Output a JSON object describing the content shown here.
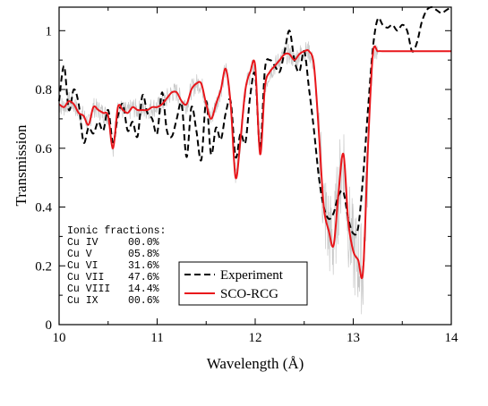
{
  "chart_data": {
    "type": "line",
    "title": "",
    "xlabel": "Wavelength (Å)",
    "ylabel": "Transmission",
    "xlim": [
      10,
      14
    ],
    "ylim": [
      0,
      1.08
    ],
    "xticks": [
      10,
      11,
      12,
      13,
      14
    ],
    "yticks": [
      0,
      0.2,
      0.4,
      0.6,
      0.8,
      1
    ],
    "grid": false,
    "legend_position": "bottom-center",
    "series": [
      {
        "name": "Experiment",
        "style": "dashed",
        "color": "#000000",
        "x": [
          10.0,
          10.05,
          10.1,
          10.15,
          10.2,
          10.25,
          10.3,
          10.35,
          10.4,
          10.45,
          10.5,
          10.55,
          10.6,
          10.65,
          10.7,
          10.75,
          10.8,
          10.85,
          10.9,
          10.95,
          11.0,
          11.05,
          11.1,
          11.15,
          11.2,
          11.25,
          11.3,
          11.35,
          11.4,
          11.45,
          11.5,
          11.55,
          11.6,
          11.65,
          11.7,
          11.75,
          11.8,
          11.85,
          11.9,
          11.95,
          12.0,
          12.05,
          12.1,
          12.15,
          12.2,
          12.25,
          12.3,
          12.35,
          12.4,
          12.45,
          12.5,
          12.55,
          12.6,
          12.65,
          12.7,
          12.75,
          12.8,
          12.85,
          12.9,
          12.95,
          13.0,
          13.05,
          13.1,
          13.15,
          13.2,
          13.25,
          13.3,
          13.35,
          13.4,
          13.45,
          13.5,
          13.55,
          13.6,
          13.65,
          13.7,
          13.75,
          13.8,
          13.85,
          13.9,
          13.95,
          14.0
        ],
        "y": [
          0.76,
          0.88,
          0.73,
          0.8,
          0.75,
          0.62,
          0.67,
          0.65,
          0.69,
          0.66,
          0.73,
          0.62,
          0.71,
          0.75,
          0.66,
          0.69,
          0.64,
          0.78,
          0.72,
          0.7,
          0.65,
          0.79,
          0.66,
          0.64,
          0.7,
          0.75,
          0.57,
          0.74,
          0.66,
          0.56,
          0.76,
          0.58,
          0.67,
          0.63,
          0.72,
          0.76,
          0.57,
          0.65,
          0.62,
          0.78,
          0.85,
          0.6,
          0.87,
          0.9,
          0.88,
          0.86,
          0.93,
          1.0,
          0.9,
          0.86,
          0.93,
          0.8,
          0.66,
          0.5,
          0.4,
          0.36,
          0.38,
          0.44,
          0.45,
          0.36,
          0.31,
          0.33,
          0.5,
          0.73,
          0.94,
          1.04,
          1.02,
          1.01,
          1.02,
          1.0,
          1.02,
          1.0,
          0.93,
          0.96,
          1.03,
          1.07,
          1.08,
          1.07,
          1.06,
          1.07,
          1.08
        ]
      },
      {
        "name": "SCO-RCG",
        "style": "solid",
        "color": "#e8161b",
        "x": [
          10.0,
          10.05,
          10.1,
          10.15,
          10.2,
          10.25,
          10.3,
          10.35,
          10.4,
          10.45,
          10.5,
          10.55,
          10.6,
          10.65,
          10.7,
          10.75,
          10.8,
          10.85,
          10.9,
          10.95,
          11.0,
          11.05,
          11.1,
          11.15,
          11.2,
          11.25,
          11.3,
          11.35,
          11.4,
          11.45,
          11.5,
          11.55,
          11.6,
          11.65,
          11.7,
          11.75,
          11.8,
          11.85,
          11.9,
          11.95,
          12.0,
          12.05,
          12.1,
          12.15,
          12.2,
          12.25,
          12.3,
          12.35,
          12.4,
          12.45,
          12.5,
          12.55,
          12.6,
          12.65,
          12.7,
          12.75,
          12.8,
          12.85,
          12.9,
          12.95,
          13.0,
          13.05,
          13.1,
          13.15,
          13.2,
          13.25,
          13.3,
          13.35,
          13.4,
          13.45,
          13.5,
          13.55,
          13.6,
          13.65,
          13.7,
          13.75,
          13.8,
          13.85,
          13.9,
          13.95,
          14.0
        ],
        "y": [
          0.75,
          0.74,
          0.76,
          0.75,
          0.72,
          0.71,
          0.68,
          0.74,
          0.73,
          0.72,
          0.71,
          0.6,
          0.74,
          0.73,
          0.72,
          0.74,
          0.73,
          0.73,
          0.73,
          0.74,
          0.74,
          0.75,
          0.77,
          0.79,
          0.79,
          0.76,
          0.75,
          0.8,
          0.82,
          0.82,
          0.75,
          0.7,
          0.75,
          0.8,
          0.87,
          0.75,
          0.5,
          0.63,
          0.8,
          0.86,
          0.88,
          0.58,
          0.81,
          0.86,
          0.88,
          0.9,
          0.92,
          0.92,
          0.9,
          0.92,
          0.93,
          0.93,
          0.88,
          0.65,
          0.4,
          0.32,
          0.27,
          0.45,
          0.58,
          0.35,
          0.25,
          0.22,
          0.18,
          0.6,
          0.92,
          0.93,
          0.93,
          0.93,
          0.93,
          0.93,
          0.93,
          0.93,
          0.93,
          0.93,
          0.93,
          0.93,
          0.93,
          0.93,
          0.93,
          0.93,
          0.93
        ]
      }
    ]
  },
  "legend": {
    "experiment": "Experiment",
    "scorcg": "SCO-RCG"
  },
  "ionic": {
    "title": "Ionic fractions:",
    "rows": [
      {
        "label": "Cu IV",
        "value": "00.0%"
      },
      {
        "label": "Cu V",
        "value": "05.8%"
      },
      {
        "label": "Cu VI",
        "value": "31.6%"
      },
      {
        "label": "Cu VII",
        "value": "47.6%"
      },
      {
        "label": "Cu VIII",
        "value": "14.4%"
      },
      {
        "label": "Cu IX",
        "value": "00.6%"
      }
    ]
  }
}
